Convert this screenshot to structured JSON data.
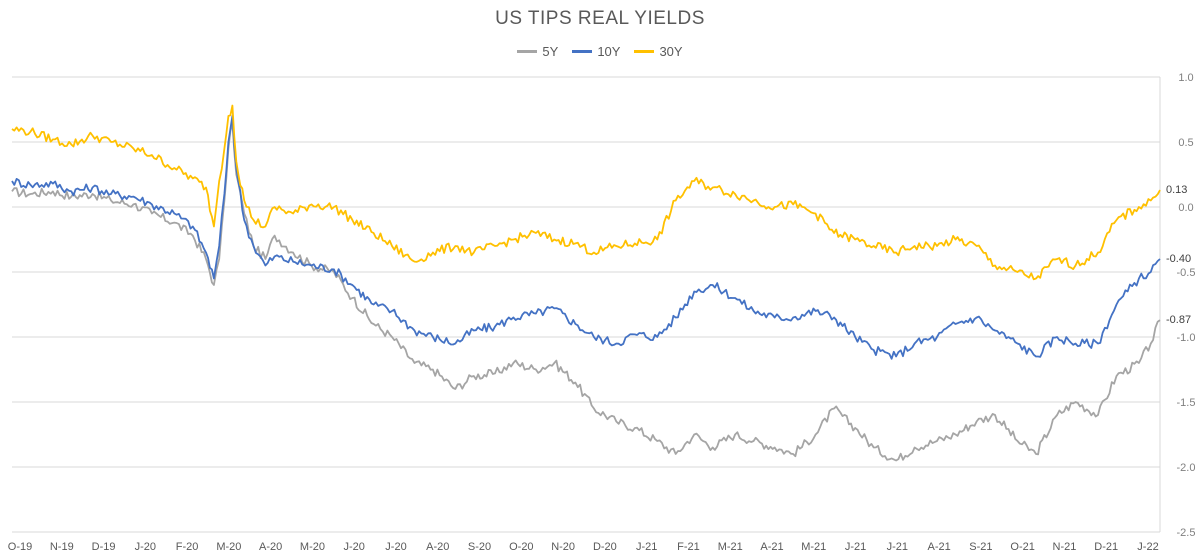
{
  "chart_data": {
    "type": "line",
    "title": "US TIPS REAL YIELDS",
    "xlabel": "",
    "ylabel": "",
    "ylim": [
      -2.5,
      1.0
    ],
    "y_ticks": [
      "1.0",
      "0.5",
      "0.0",
      "-0.5",
      "-1.0",
      "-1.5",
      "-2.0",
      "-2.5"
    ],
    "y_axis_side": "right",
    "grid": true,
    "legend_position": "top-center",
    "x_tick_labels": [
      "O-19",
      "N-19",
      "D-19",
      "J-20",
      "F-20",
      "M-20",
      "A-20",
      "M-20",
      "J-20",
      "J-20",
      "A-20",
      "S-20",
      "O-20",
      "N-20",
      "D-20",
      "J-21",
      "F-21",
      "M-21",
      "A-21",
      "M-21",
      "J-21",
      "J-21",
      "A-21",
      "S-21",
      "O-21",
      "N-21",
      "D-21",
      "J-22"
    ],
    "x_range": [
      "2019-10-01",
      "2022-02-17"
    ],
    "series": [
      {
        "name": "5Y",
        "color": "#a5a5a5",
        "end_label": "-0.87",
        "points": [
          [
            "2019-10-01",
            0.12
          ],
          [
            "2019-10-15",
            0.1
          ],
          [
            "2019-11-01",
            0.12
          ],
          [
            "2019-11-15",
            0.08
          ],
          [
            "2019-12-01",
            0.1
          ],
          [
            "2019-12-15",
            0.05
          ],
          [
            "2020-01-01",
            0.02
          ],
          [
            "2020-01-15",
            -0.05
          ],
          [
            "2020-02-01",
            -0.12
          ],
          [
            "2020-02-15",
            -0.22
          ],
          [
            "2020-02-25",
            -0.4
          ],
          [
            "2020-03-02",
            -0.6
          ],
          [
            "2020-03-06",
            -0.4
          ],
          [
            "2020-03-10",
            0.05
          ],
          [
            "2020-03-13",
            0.45
          ],
          [
            "2020-03-16",
            0.65
          ],
          [
            "2020-03-19",
            0.25
          ],
          [
            "2020-03-25",
            -0.05
          ],
          [
            "2020-04-01",
            -0.3
          ],
          [
            "2020-04-10",
            -0.4
          ],
          [
            "2020-04-17",
            -0.22
          ],
          [
            "2020-05-01",
            -0.35
          ],
          [
            "2020-05-15",
            -0.45
          ],
          [
            "2020-06-01",
            -0.5
          ],
          [
            "2020-06-15",
            -0.7
          ],
          [
            "2020-07-01",
            -0.9
          ],
          [
            "2020-07-15",
            -1.0
          ],
          [
            "2020-08-01",
            -1.2
          ],
          [
            "2020-08-15",
            -1.25
          ],
          [
            "2020-09-01",
            -1.4
          ],
          [
            "2020-09-15",
            -1.3
          ],
          [
            "2020-10-01",
            -1.28
          ],
          [
            "2020-10-15",
            -1.2
          ],
          [
            "2020-11-01",
            -1.25
          ],
          [
            "2020-11-15",
            -1.2
          ],
          [
            "2020-12-01",
            -1.35
          ],
          [
            "2020-12-15",
            -1.55
          ],
          [
            "2021-01-01",
            -1.65
          ],
          [
            "2021-01-15",
            -1.7
          ],
          [
            "2021-02-01",
            -1.8
          ],
          [
            "2021-02-15",
            -1.9
          ],
          [
            "2021-03-01",
            -1.75
          ],
          [
            "2021-03-15",
            -1.85
          ],
          [
            "2021-04-01",
            -1.75
          ],
          [
            "2021-04-15",
            -1.8
          ],
          [
            "2021-05-01",
            -1.85
          ],
          [
            "2021-05-15",
            -1.9
          ],
          [
            "2021-06-01",
            -1.75
          ],
          [
            "2021-06-15",
            -1.55
          ],
          [
            "2021-07-01",
            -1.7
          ],
          [
            "2021-07-15",
            -1.85
          ],
          [
            "2021-08-01",
            -1.95
          ],
          [
            "2021-08-15",
            -1.85
          ],
          [
            "2021-09-01",
            -1.8
          ],
          [
            "2021-09-15",
            -1.75
          ],
          [
            "2021-10-01",
            -1.65
          ],
          [
            "2021-10-15",
            -1.6
          ],
          [
            "2021-11-01",
            -1.8
          ],
          [
            "2021-11-15",
            -1.9
          ],
          [
            "2021-12-01",
            -1.6
          ],
          [
            "2021-12-15",
            -1.5
          ],
          [
            "2022-01-01",
            -1.6
          ],
          [
            "2022-01-15",
            -1.3
          ],
          [
            "2022-02-01",
            -1.2
          ],
          [
            "2022-02-10",
            -1.05
          ],
          [
            "2022-02-17",
            -0.87
          ]
        ]
      },
      {
        "name": "10Y",
        "color": "#4472c4",
        "end_label": "-0.40",
        "points": [
          [
            "2019-10-01",
            0.2
          ],
          [
            "2019-10-15",
            0.17
          ],
          [
            "2019-11-01",
            0.18
          ],
          [
            "2019-11-15",
            0.12
          ],
          [
            "2019-12-01",
            0.15
          ],
          [
            "2019-12-15",
            0.1
          ],
          [
            "2020-01-01",
            0.08
          ],
          [
            "2020-01-15",
            0.02
          ],
          [
            "2020-02-01",
            -0.05
          ],
          [
            "2020-02-15",
            -0.15
          ],
          [
            "2020-02-25",
            -0.35
          ],
          [
            "2020-03-02",
            -0.55
          ],
          [
            "2020-03-06",
            -0.3
          ],
          [
            "2020-03-10",
            0.1
          ],
          [
            "2020-03-13",
            0.5
          ],
          [
            "2020-03-16",
            0.7
          ],
          [
            "2020-03-19",
            0.3
          ],
          [
            "2020-03-25",
            -0.1
          ],
          [
            "2020-04-01",
            -0.3
          ],
          [
            "2020-04-10",
            -0.45
          ],
          [
            "2020-04-17",
            -0.38
          ],
          [
            "2020-05-01",
            -0.42
          ],
          [
            "2020-05-15",
            -0.45
          ],
          [
            "2020-06-01",
            -0.48
          ],
          [
            "2020-06-15",
            -0.6
          ],
          [
            "2020-07-01",
            -0.75
          ],
          [
            "2020-07-15",
            -0.8
          ],
          [
            "2020-08-01",
            -0.95
          ],
          [
            "2020-08-15",
            -1.0
          ],
          [
            "2020-09-01",
            -1.05
          ],
          [
            "2020-09-15",
            -0.95
          ],
          [
            "2020-10-01",
            -0.92
          ],
          [
            "2020-10-15",
            -0.85
          ],
          [
            "2020-11-01",
            -0.82
          ],
          [
            "2020-11-15",
            -0.78
          ],
          [
            "2020-12-01",
            -0.9
          ],
          [
            "2020-12-15",
            -1.0
          ],
          [
            "2021-01-01",
            -1.05
          ],
          [
            "2021-01-15",
            -0.98
          ],
          [
            "2021-02-01",
            -1.0
          ],
          [
            "2021-02-15",
            -0.85
          ],
          [
            "2021-03-01",
            -0.65
          ],
          [
            "2021-03-15",
            -0.6
          ],
          [
            "2021-04-01",
            -0.7
          ],
          [
            "2021-04-15",
            -0.8
          ],
          [
            "2021-05-01",
            -0.85
          ],
          [
            "2021-05-15",
            -0.85
          ],
          [
            "2021-06-01",
            -0.8
          ],
          [
            "2021-06-15",
            -0.85
          ],
          [
            "2021-07-01",
            -1.0
          ],
          [
            "2021-07-15",
            -1.1
          ],
          [
            "2021-08-01",
            -1.15
          ],
          [
            "2021-08-15",
            -1.05
          ],
          [
            "2021-09-01",
            -1.0
          ],
          [
            "2021-09-15",
            -0.9
          ],
          [
            "2021-10-01",
            -0.85
          ],
          [
            "2021-10-15",
            -0.95
          ],
          [
            "2021-11-01",
            -1.05
          ],
          [
            "2021-11-15",
            -1.15
          ],
          [
            "2021-12-01",
            -1.0
          ],
          [
            "2021-12-15",
            -1.05
          ],
          [
            "2022-01-01",
            -1.05
          ],
          [
            "2022-01-15",
            -0.75
          ],
          [
            "2022-02-01",
            -0.55
          ],
          [
            "2022-02-10",
            -0.5
          ],
          [
            "2022-02-17",
            -0.4
          ]
        ]
      },
      {
        "name": "30Y",
        "color": "#ffc000",
        "end_label": "0.13",
        "points": [
          [
            "2019-10-01",
            0.6
          ],
          [
            "2019-10-15",
            0.58
          ],
          [
            "2019-11-01",
            0.52
          ],
          [
            "2019-11-15",
            0.48
          ],
          [
            "2019-12-01",
            0.55
          ],
          [
            "2019-12-15",
            0.5
          ],
          [
            "2020-01-01",
            0.45
          ],
          [
            "2020-01-15",
            0.4
          ],
          [
            "2020-02-01",
            0.3
          ],
          [
            "2020-02-15",
            0.22
          ],
          [
            "2020-02-25",
            0.15
          ],
          [
            "2020-03-02",
            -0.15
          ],
          [
            "2020-03-06",
            0.2
          ],
          [
            "2020-03-10",
            0.45
          ],
          [
            "2020-03-13",
            0.7
          ],
          [
            "2020-03-16",
            0.78
          ],
          [
            "2020-03-19",
            0.35
          ],
          [
            "2020-03-25",
            0.05
          ],
          [
            "2020-04-01",
            -0.1
          ],
          [
            "2020-04-10",
            -0.15
          ],
          [
            "2020-04-17",
            0.0
          ],
          [
            "2020-05-01",
            -0.05
          ],
          [
            "2020-05-15",
            0.02
          ],
          [
            "2020-06-01",
            0.0
          ],
          [
            "2020-06-15",
            -0.1
          ],
          [
            "2020-07-01",
            -0.2
          ],
          [
            "2020-07-15",
            -0.3
          ],
          [
            "2020-08-01",
            -0.42
          ],
          [
            "2020-08-15",
            -0.35
          ],
          [
            "2020-09-01",
            -0.3
          ],
          [
            "2020-09-15",
            -0.35
          ],
          [
            "2020-10-01",
            -0.3
          ],
          [
            "2020-10-15",
            -0.25
          ],
          [
            "2020-11-01",
            -0.2
          ],
          [
            "2020-11-15",
            -0.25
          ],
          [
            "2020-12-01",
            -0.28
          ],
          [
            "2020-12-15",
            -0.35
          ],
          [
            "2021-01-01",
            -0.3
          ],
          [
            "2021-01-15",
            -0.28
          ],
          [
            "2021-02-01",
            -0.25
          ],
          [
            "2021-02-15",
            0.05
          ],
          [
            "2021-03-01",
            0.2
          ],
          [
            "2021-03-15",
            0.15
          ],
          [
            "2021-04-01",
            0.1
          ],
          [
            "2021-04-15",
            0.05
          ],
          [
            "2021-05-01",
            0.0
          ],
          [
            "2021-05-15",
            0.02
          ],
          [
            "2021-06-01",
            -0.05
          ],
          [
            "2021-06-15",
            -0.2
          ],
          [
            "2021-07-01",
            -0.25
          ],
          [
            "2021-07-15",
            -0.3
          ],
          [
            "2021-08-01",
            -0.35
          ],
          [
            "2021-08-15",
            -0.3
          ],
          [
            "2021-09-01",
            -0.3
          ],
          [
            "2021-09-15",
            -0.25
          ],
          [
            "2021-10-01",
            -0.3
          ],
          [
            "2021-10-15",
            -0.45
          ],
          [
            "2021-11-01",
            -0.5
          ],
          [
            "2021-11-15",
            -0.55
          ],
          [
            "2021-12-01",
            -0.4
          ],
          [
            "2021-12-15",
            -0.45
          ],
          [
            "2022-01-01",
            -0.35
          ],
          [
            "2022-01-15",
            -0.1
          ],
          [
            "2022-02-01",
            0.0
          ],
          [
            "2022-02-10",
            0.05
          ],
          [
            "2022-02-17",
            0.13
          ]
        ]
      }
    ]
  }
}
